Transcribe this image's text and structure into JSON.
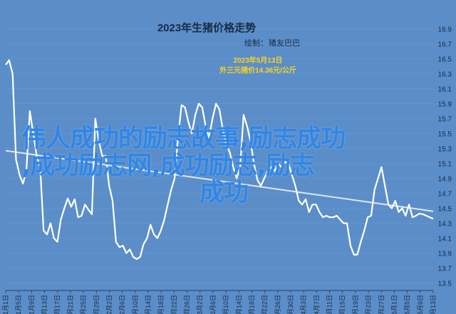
{
  "chart_data": {
    "type": "line",
    "title": "2023年生猪价格走势",
    "credit_label": "绘制：",
    "credit_name": "猪友巴巴",
    "annotation": {
      "date": "2023年5月13日",
      "text": "外三元猪价14.36元/公斤"
    },
    "ylim": [
      13.6,
      16.9
    ],
    "yticks": [
      "16.9",
      "16.7",
      "16.5",
      "16.3",
      "16.1",
      "15.9",
      "15.7",
      "15.5",
      "15.3",
      "15.1",
      "14.9",
      "14.7",
      "14.5",
      "14.3",
      "14.1",
      "13.9",
      "13.7",
      "13.5"
    ],
    "xticks": [
      "1月1日",
      "1月5日",
      "1月9日",
      "1月13日",
      "1月17日",
      "1月21日",
      "1月25日",
      "1月29日",
      "2月2日",
      "2月6日",
      "2月10日",
      "2月14日",
      "2月18日",
      "2月22日",
      "2月26日",
      "3月2日",
      "3月6日",
      "3月10日",
      "3月14日",
      "3月18日",
      "3月22日",
      "3月26日",
      "3月30日",
      "4月3日",
      "4月7日",
      "4月11日",
      "4月15日",
      "4月19日",
      "4月23日",
      "4月27日",
      "5月1日",
      "5月5日",
      "5月9日",
      "5月13日"
    ],
    "trend": {
      "start": 15.27,
      "end": 14.46
    },
    "series": [
      {
        "values": [
          16.42,
          16.48,
          16.3,
          15.15,
          14.95,
          14.83,
          15.0,
          15.8,
          15.5,
          15.2,
          15.05,
          14.2,
          14.15,
          14.3,
          14.1,
          14.05,
          14.35,
          14.5,
          14.63,
          14.52,
          14.62,
          14.38,
          14.4,
          14.55,
          14.48,
          14.42,
          15.7,
          15.4,
          15.2,
          15.2,
          14.8,
          14.6,
          14.05,
          13.98,
          14.0,
          13.9,
          13.95,
          13.85,
          13.82,
          13.85,
          14.02,
          14.1,
          14.28,
          14.15,
          14.1,
          14.2,
          14.35,
          14.55,
          14.75,
          14.9,
          15.45,
          15.88,
          15.85,
          15.65,
          15.5,
          15.75,
          15.9,
          15.85,
          15.6,
          15.45,
          15.7,
          15.9,
          15.82,
          15.55,
          15.35,
          15.25,
          15.05,
          14.9,
          15.05,
          15.75,
          15.6,
          15.4,
          15.1,
          14.88,
          14.8,
          14.9,
          15.0,
          15.05,
          15.0,
          15.1,
          15.05,
          15.12,
          15.1,
          14.95,
          14.8,
          14.6,
          14.55,
          14.62,
          14.45,
          14.55,
          14.55,
          14.45,
          14.38,
          14.4,
          14.38,
          14.38,
          14.4,
          14.35,
          14.3,
          14.3,
          14.0,
          13.88,
          13.88,
          14.05,
          14.2,
          14.38,
          14.4,
          14.75,
          14.9,
          15.05,
          14.8,
          14.55,
          14.5,
          14.6,
          14.45,
          14.5,
          14.4,
          14.55,
          14.38,
          14.4,
          14.43,
          14.42,
          14.4,
          14.38,
          14.36
        ]
      }
    ]
  },
  "overlay": {
    "line1": "伟人成功的励志故事,励志成功",
    "line2": ",成功励志网,成功励志,励志",
    "line3": "成功"
  },
  "colors": {
    "background": "#5b8ec9",
    "line": "#ffffff",
    "text": "#1a2a44",
    "annotation": "#ffd21a",
    "overlay": "#2f86e8"
  }
}
